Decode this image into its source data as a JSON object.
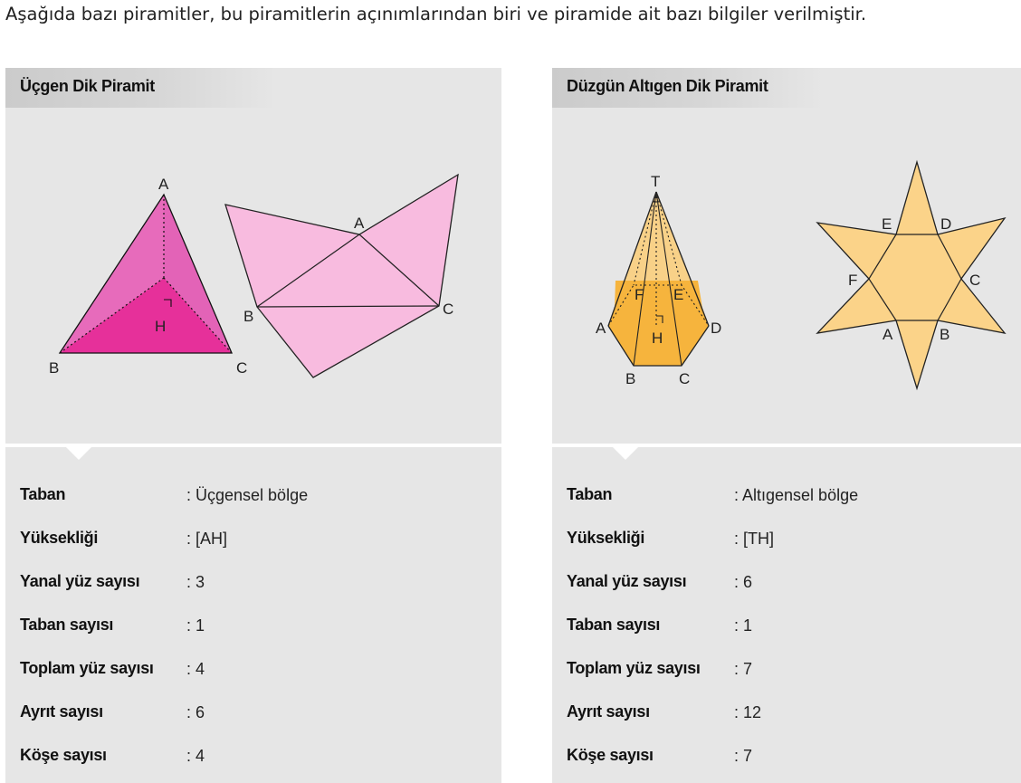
{
  "intro": "Aşağıda bazı piramitler, bu piramitlerin açınımlarından biri ve piramide ait bazı bilgiler verilmiştir.",
  "left_panel": {
    "title": "Üçgen Dik Piramit",
    "solid_labels": {
      "A": "A",
      "B": "B",
      "C": "C",
      "H": "H"
    },
    "net_labels": {
      "A": "A",
      "B": "B",
      "C": "C"
    },
    "colors": {
      "front": "#e6309a",
      "side": "#e363b7",
      "net": "#f8bbdf"
    },
    "rows": [
      {
        "key": "Taban",
        "value": ": Üçgensel bölge"
      },
      {
        "key": "Yüksekliği",
        "value": ": [AH]"
      },
      {
        "key": "Yanal yüz sayısı",
        "value": ": 3"
      },
      {
        "key": "Taban sayısı",
        "value": ": 1"
      },
      {
        "key": "Toplam yüz sayısı",
        "value": ": 4"
      },
      {
        "key": "Ayrıt sayısı",
        "value": ": 6"
      },
      {
        "key": "Köşe sayısı",
        "value": ": 4"
      }
    ]
  },
  "right_panel": {
    "title": "Düzgün Altıgen Dik Piramit",
    "solid_labels": {
      "T": "T",
      "A": "A",
      "B": "B",
      "C": "C",
      "D": "D",
      "E": "E",
      "F": "F",
      "H": "H"
    },
    "net_labels": {
      "A": "A",
      "B": "B",
      "C": "C",
      "D": "D",
      "E": "E",
      "F": "F"
    },
    "colors": {
      "upper": "#f8d188",
      "lower": "#f6b43d",
      "net": "#fbd389"
    },
    "rows": [
      {
        "key": "Taban",
        "value": ": Altıgensel bölge"
      },
      {
        "key": "Yüksekliği",
        "value": ": [TH]"
      },
      {
        "key": "Yanal yüz sayısı",
        "value": ": 6"
      },
      {
        "key": "Taban sayısı",
        "value": ": 1"
      },
      {
        "key": "Toplam yüz sayısı",
        "value": ": 7"
      },
      {
        "key": "Ayrıt sayısı",
        "value": ": 12"
      },
      {
        "key": "Köşe sayısı",
        "value": ": 7"
      }
    ]
  }
}
